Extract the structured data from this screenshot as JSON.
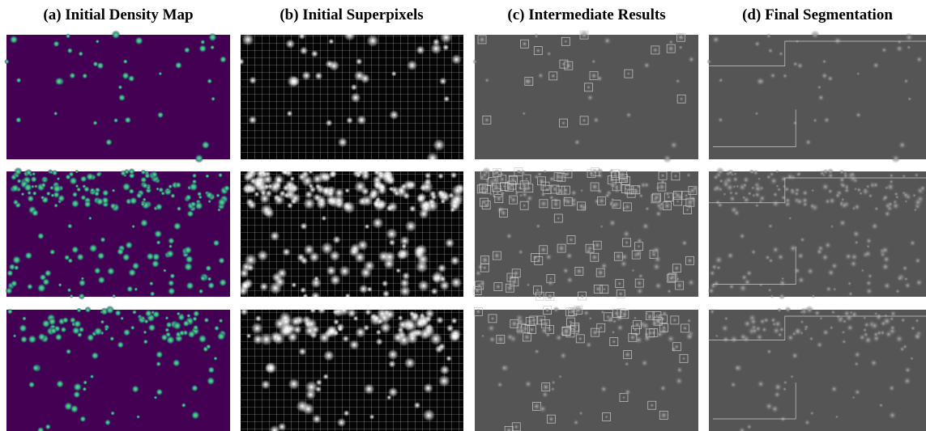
{
  "header": {
    "titles": [
      "(a) Initial Density Map",
      "(b) Initial Superpixels",
      "(c) Intermediate Results",
      "(d) Final Segmentation"
    ]
  }
}
